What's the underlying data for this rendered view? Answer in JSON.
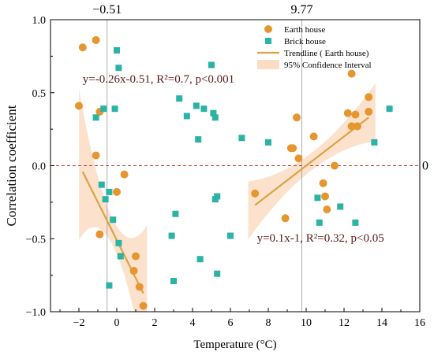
{
  "chart_data": {
    "type": "scatter",
    "xlabel": "Temperature (°C)",
    "ylabel": "Correlation coefficient",
    "xlim": [
      -3.5,
      16
    ],
    "ylim": [
      -1.0,
      1.0
    ],
    "x_ticks": [
      -2,
      0,
      2,
      4,
      6,
      8,
      10,
      12,
      14,
      16
    ],
    "y_ticks": [
      -1.0,
      -0.5,
      0.0,
      0.5,
      1.0
    ],
    "x_tick_labels": [
      "−2",
      "0",
      "2",
      "4",
      "6",
      "8",
      "10",
      "12",
      "14",
      "16"
    ],
    "y_tick_labels": [
      "−1.0",
      "−0.5",
      "0.0",
      "0.5",
      "1.0"
    ],
    "grid": false,
    "legend_position": "top-right",
    "reference_lines": [
      {
        "axis": "x",
        "value": -0.51,
        "label": "−0.51",
        "color": "#999999"
      },
      {
        "axis": "x",
        "value": 9.77,
        "label": "9.77",
        "color": "#999999"
      },
      {
        "axis": "y",
        "value": 0,
        "label": "0",
        "color": "#c0392b"
      }
    ],
    "series": [
      {
        "name": "Earth house",
        "marker": "circle",
        "color": "#e6962e",
        "points": [
          [
            -1.8,
            0.81
          ],
          [
            -2.0,
            0.41
          ],
          [
            -1.1,
            0.86
          ],
          [
            -0.9,
            0.37
          ],
          [
            -1.1,
            0.07
          ],
          [
            -0.9,
            -0.47
          ],
          [
            0.0,
            -0.18
          ],
          [
            0.4,
            -0.06
          ],
          [
            0.9,
            -0.72
          ],
          [
            1.0,
            -0.62
          ],
          [
            1.2,
            -0.83
          ],
          [
            1.4,
            -0.96
          ],
          [
            8.9,
            -0.36
          ],
          [
            9.2,
            0.12
          ],
          [
            9.3,
            0.12
          ],
          [
            9.5,
            0.33
          ],
          [
            9.6,
            0.05
          ],
          [
            7.3,
            -0.19
          ],
          [
            10.4,
            0.2
          ],
          [
            10.9,
            -0.12
          ],
          [
            11.0,
            -0.21
          ],
          [
            11.1,
            -0.3
          ],
          [
            11.5,
            0.0
          ],
          [
            12.2,
            0.36
          ],
          [
            12.4,
            0.63
          ],
          [
            12.4,
            0.27
          ],
          [
            12.6,
            0.35
          ],
          [
            12.7,
            0.27
          ],
          [
            13.3,
            0.47
          ],
          [
            13.3,
            0.37
          ]
        ]
      },
      {
        "name": "Brick house",
        "marker": "square",
        "color": "#2bb3a5",
        "points": [
          [
            -1.1,
            0.33
          ],
          [
            -0.8,
            -0.13
          ],
          [
            -0.7,
            0.39
          ],
          [
            -0.6,
            -0.23
          ],
          [
            -0.4,
            -0.18
          ],
          [
            -0.4,
            -0.82
          ],
          [
            -0.2,
            -0.37
          ],
          [
            -0.1,
            0.39
          ],
          [
            0.0,
            0.79
          ],
          [
            0.1,
            0.67
          ],
          [
            0.1,
            -0.53
          ],
          [
            0.2,
            -0.62
          ],
          [
            2.9,
            -0.48
          ],
          [
            3.0,
            -0.79
          ],
          [
            3.1,
            -0.33
          ],
          [
            3.3,
            0.46
          ],
          [
            3.7,
            0.34
          ],
          [
            4.2,
            0.41
          ],
          [
            4.3,
            0.18
          ],
          [
            4.4,
            -0.64
          ],
          [
            4.6,
            0.39
          ],
          [
            5.0,
            0.69
          ],
          [
            5.1,
            0.36
          ],
          [
            5.2,
            0.33
          ],
          [
            5.2,
            -0.23
          ],
          [
            5.3,
            -0.21
          ],
          [
            5.3,
            -0.74
          ],
          [
            6.0,
            -0.48
          ],
          [
            6.6,
            0.19
          ],
          [
            8.0,
            0.16
          ],
          [
            10.6,
            -0.22
          ],
          [
            10.7,
            -0.39
          ],
          [
            11.8,
            -0.28
          ],
          [
            12.6,
            -0.39
          ],
          [
            13.6,
            0.16
          ],
          [
            14.4,
            0.39
          ]
        ]
      }
    ],
    "trendlines": [
      {
        "x_range": [
          -1.8,
          1.4
        ],
        "slope": -0.26,
        "intercept": -0.51,
        "label": "y=-0.26x-0.51, R²=0.7, p<0.001",
        "equation_anchor": [
          -1.8,
          0.57
        ]
      },
      {
        "x_range": [
          7.3,
          13.3
        ],
        "slope": 0.1,
        "intercept": -1,
        "label": "y=0.1x-1, R²=0.32, p<0.05",
        "equation_anchor": [
          7.4,
          -0.52
        ]
      }
    ],
    "confidence_band_color": "#fbdcc4",
    "trend_color": "#d9a441",
    "legend": {
      "items": [
        {
          "label": "Earth house",
          "kind": "circle",
          "color": "#e6962e"
        },
        {
          "label": "Brick house",
          "kind": "square",
          "color": "#2bb3a5"
        },
        {
          "label": "Trendline ( Earth house)",
          "kind": "line",
          "color": "#d9a441"
        },
        {
          "label": "95% Confidence Interval",
          "kind": "band",
          "color": "#fbdcc4"
        }
      ]
    }
  }
}
